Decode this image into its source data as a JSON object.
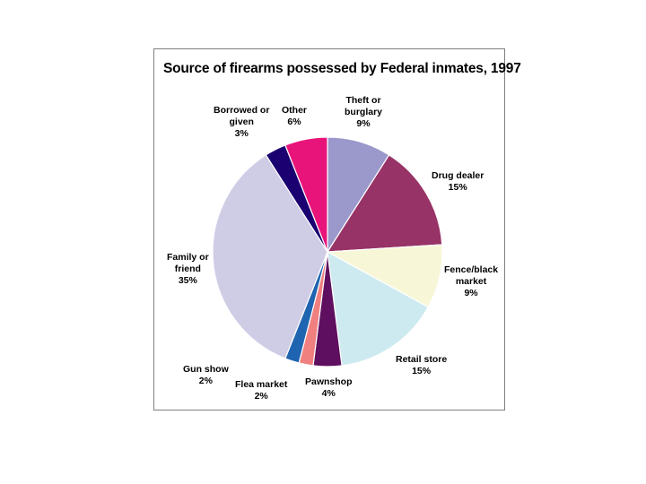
{
  "chart_data": {
    "type": "pie",
    "title": "Source of firearms possessed by Federal inmates, 1997",
    "slices": [
      {
        "label": "Theft or burglary",
        "value": 9,
        "color": "#9b98cb"
      },
      {
        "label": "Drug dealer",
        "value": 15,
        "color": "#973366"
      },
      {
        "label": "Fence/black market",
        "value": 9,
        "color": "#f7f7d8"
      },
      {
        "label": "Retail store",
        "value": 15,
        "color": "#cdeaf0"
      },
      {
        "label": "Pawnshop",
        "value": 4,
        "color": "#5f0f5f"
      },
      {
        "label": "Flea market",
        "value": 2,
        "color": "#f08080"
      },
      {
        "label": "Gun show",
        "value": 2,
        "color": "#1f64b0"
      },
      {
        "label": "Family or friend",
        "value": 35,
        "color": "#cfcde6"
      },
      {
        "label": "Borrowed or given",
        "value": 3,
        "color": "#1a0070"
      },
      {
        "label": "Other",
        "value": 6,
        "color": "#e8147a"
      }
    ],
    "labels": [
      {
        "lines": [
          "Theft or",
          "burglary",
          "9%"
        ]
      },
      {
        "lines": [
          "Drug dealer",
          "15%"
        ]
      },
      {
        "lines": [
          "Fence/black",
          "market",
          "9%"
        ]
      },
      {
        "lines": [
          "Retail store",
          "15%"
        ]
      },
      {
        "lines": [
          "Pawnshop",
          "4%"
        ]
      },
      {
        "lines": [
          "Flea market",
          "2%"
        ]
      },
      {
        "lines": [
          "Gun show",
          "2%"
        ]
      },
      {
        "lines": [
          "Family or",
          "friend",
          "35%"
        ]
      },
      {
        "lines": [
          "Borrowed or",
          "given",
          "3%"
        ]
      },
      {
        "lines": [
          "Other",
          "6%"
        ]
      }
    ]
  }
}
